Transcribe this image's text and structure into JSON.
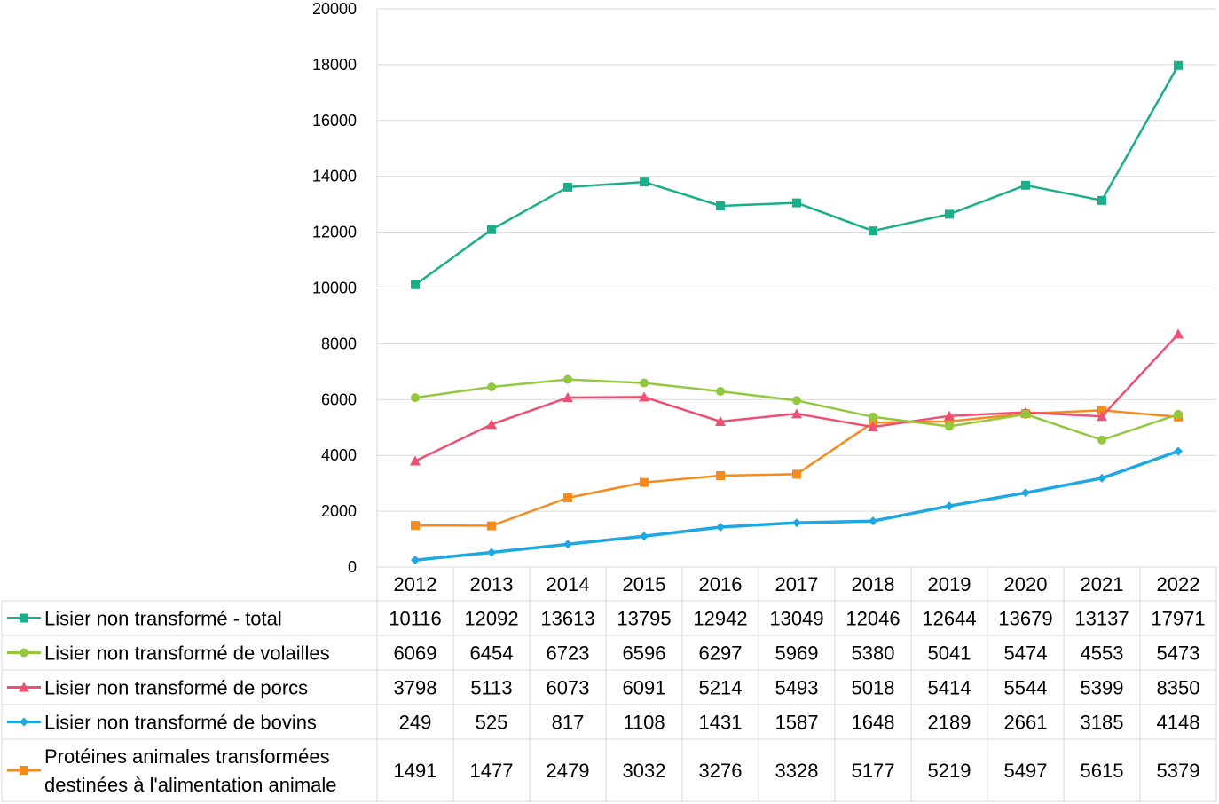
{
  "chart_data": {
    "type": "line",
    "ylim": [
      0,
      20000
    ],
    "yticks": [
      "0",
      "2000",
      "4000",
      "6000",
      "8000",
      "10000",
      "12000",
      "14000",
      "16000",
      "18000",
      "20000"
    ],
    "grid": true,
    "legend": "data-table-left",
    "categories": [
      "2012",
      "2013",
      "2014",
      "2015",
      "2016",
      "2017",
      "2018",
      "2019",
      "2020",
      "2021",
      "2022"
    ],
    "series": [
      {
        "name": "Lisier non transformé - total",
        "color": "#1aae8b",
        "marker": "square",
        "values": [
          10116,
          12092,
          13613,
          13795,
          12942,
          13049,
          12046,
          12644,
          13679,
          13137,
          17971
        ],
        "labels": [
          "10116",
          "12092",
          "13613",
          "13795",
          "12942",
          "13049",
          "12046",
          "12644",
          "13679",
          "13137",
          "17971"
        ]
      },
      {
        "name": "Lisier non transformé de volailles",
        "color": "#92c83e",
        "marker": "circle",
        "values": [
          6069,
          6454,
          6723,
          6596,
          6297,
          5969,
          5380,
          5041,
          5474,
          4553,
          5473
        ],
        "labels": [
          "6069",
          "6454",
          "6723",
          "6596",
          "6297",
          "5969",
          "5380",
          "5041",
          "5474",
          "4553",
          "5473"
        ]
      },
      {
        "name": "Lisier non transformé de porcs",
        "color": "#ef4f72",
        "marker": "triangle",
        "values": [
          3798,
          5113,
          6073,
          6091,
          5214,
          5493,
          5018,
          5414,
          5544,
          5399,
          8350
        ],
        "labels": [
          "3798",
          "5113",
          "6073",
          "6091",
          "5214",
          "5493",
          "5018",
          "5414",
          "5544",
          "5399",
          "8350"
        ]
      },
      {
        "name": "Lisier non transformé de bovins",
        "color": "#1ea7e1",
        "marker": "diamond",
        "values": [
          249,
          525,
          817,
          1108,
          1431,
          1587,
          1648,
          2189,
          2661,
          3185,
          4148
        ],
        "labels": [
          "249",
          "525",
          "817",
          "1108",
          "1431",
          "1587",
          "1648",
          "2189",
          "2661",
          "3185",
          "4148"
        ]
      },
      {
        "name": " Protéines animales transformées destinées à l'alimentation animale",
        "name_lines": [
          " Protéines animales transformées",
          "destinées à l'alimentation animale"
        ],
        "color": "#f58a1f",
        "marker": "square",
        "values": [
          1491,
          1477,
          2479,
          3032,
          3276,
          3328,
          5177,
          5219,
          5497,
          5615,
          5379
        ],
        "labels": [
          "1491",
          "1477",
          "2479",
          "3032",
          "3276",
          "3328",
          "5177",
          "5219",
          "5497",
          "5615",
          "5379"
        ]
      }
    ]
  }
}
